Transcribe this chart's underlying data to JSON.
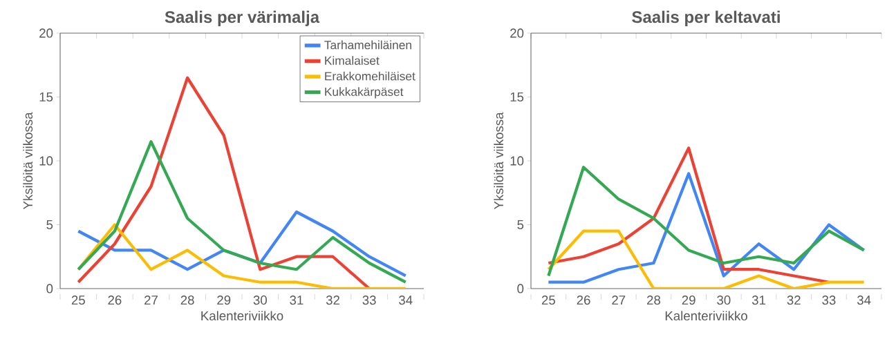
{
  "chart_data": [
    {
      "type": "line",
      "title": "Saalis per värimalja",
      "xlabel": "Kalenteriviikko",
      "ylabel": "Yksilöitä viikossa",
      "categories": [
        "25",
        "26",
        "27",
        "28",
        "29",
        "30",
        "31",
        "32",
        "33",
        "34"
      ],
      "series": [
        {
          "name": "Tarhamehiläinen",
          "color": "#4285f4",
          "values": [
            4.5,
            3,
            3,
            1.5,
            3,
            2,
            6,
            4.5,
            2.5,
            1
          ]
        },
        {
          "name": "Kimalaiset",
          "color": "#ea4335",
          "values": [
            0.5,
            3.5,
            8,
            16.5,
            12,
            1.5,
            2.5,
            2.5,
            0,
            null
          ]
        },
        {
          "name": "Erakkomehiläiset",
          "color": "#fbbc04",
          "values": [
            1.5,
            5,
            1.5,
            3,
            1,
            0.5,
            0.5,
            0,
            0,
            0
          ]
        },
        {
          "name": "Kukkakärpäset",
          "color": "#34a853",
          "values": [
            1.5,
            4.5,
            11.5,
            5.5,
            3,
            2,
            1.5,
            4,
            2,
            0.5
          ]
        }
      ],
      "ylim": [
        0,
        20
      ],
      "yticks": [
        0,
        5,
        10,
        15,
        20
      ],
      "legend": "top right",
      "grid": false
    },
    {
      "type": "line",
      "title": "Saalis per keltavati",
      "xlabel": "Kalenteriviikko",
      "ylabel": "Yksilöitä viikossa",
      "categories": [
        "25",
        "26",
        "27",
        "28",
        "29",
        "30",
        "31",
        "32",
        "33",
        "34"
      ],
      "series": [
        {
          "color": "#4285f4",
          "values": [
            0.5,
            0.5,
            1.5,
            2,
            9,
            1,
            3.5,
            1.5,
            5,
            3
          ]
        },
        {
          "color": "#ea4335",
          "values": [
            2,
            2.5,
            3.5,
            5.5,
            11,
            1.5,
            1.5,
            1,
            0.5,
            null
          ]
        },
        {
          "color": "#fbbc04",
          "values": [
            1.5,
            4.5,
            4.5,
            0,
            0,
            0,
            1,
            0,
            0.5,
            0.5
          ]
        },
        {
          "color": "#34a853",
          "values": [
            1,
            9.5,
            7,
            5.5,
            3,
            2,
            2.5,
            2,
            4.5,
            3
          ]
        }
      ],
      "ylim": [
        0,
        20
      ],
      "yticks": [
        0,
        5,
        10,
        15,
        20
      ],
      "legend": false,
      "grid": false
    }
  ]
}
